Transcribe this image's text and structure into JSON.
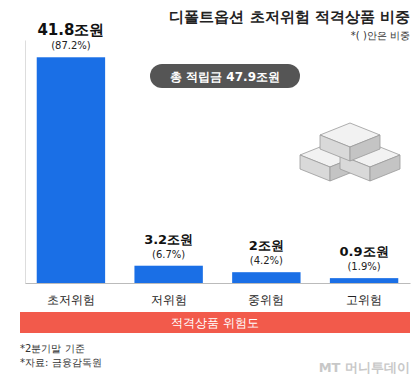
{
  "chart_data": {
    "type": "bar",
    "title": "디폴트옵션 초저위험 적격상품 비중",
    "subtitle": "*( )안은 비중",
    "categories": [
      "초저위험",
      "저위험",
      "중위험",
      "고위험"
    ],
    "values": [
      41.8,
      3.2,
      2,
      0.9
    ],
    "value_labels": [
      "41.8조원",
      "3.2조원",
      "2조원",
      "0.9조원"
    ],
    "shares": [
      87.2,
      6.7,
      4.2,
      1.9
    ],
    "share_labels": [
      "(87.2%)",
      "(6.7%)",
      "(4.2%)",
      "(1.9%)"
    ],
    "color": "#1a6fe6",
    "ylim": [
      0,
      45
    ],
    "yticks": [],
    "grid": false,
    "data_labels": true,
    "tick_labels": "x",
    "xlabel": "적격상품 위험도",
    "annotations": [
      "총 적립금 47.9조원"
    ],
    "notes": [
      "*2분기말 기준",
      "*자료: 금융감독원"
    ],
    "watermark": "MT 머니투데이"
  }
}
